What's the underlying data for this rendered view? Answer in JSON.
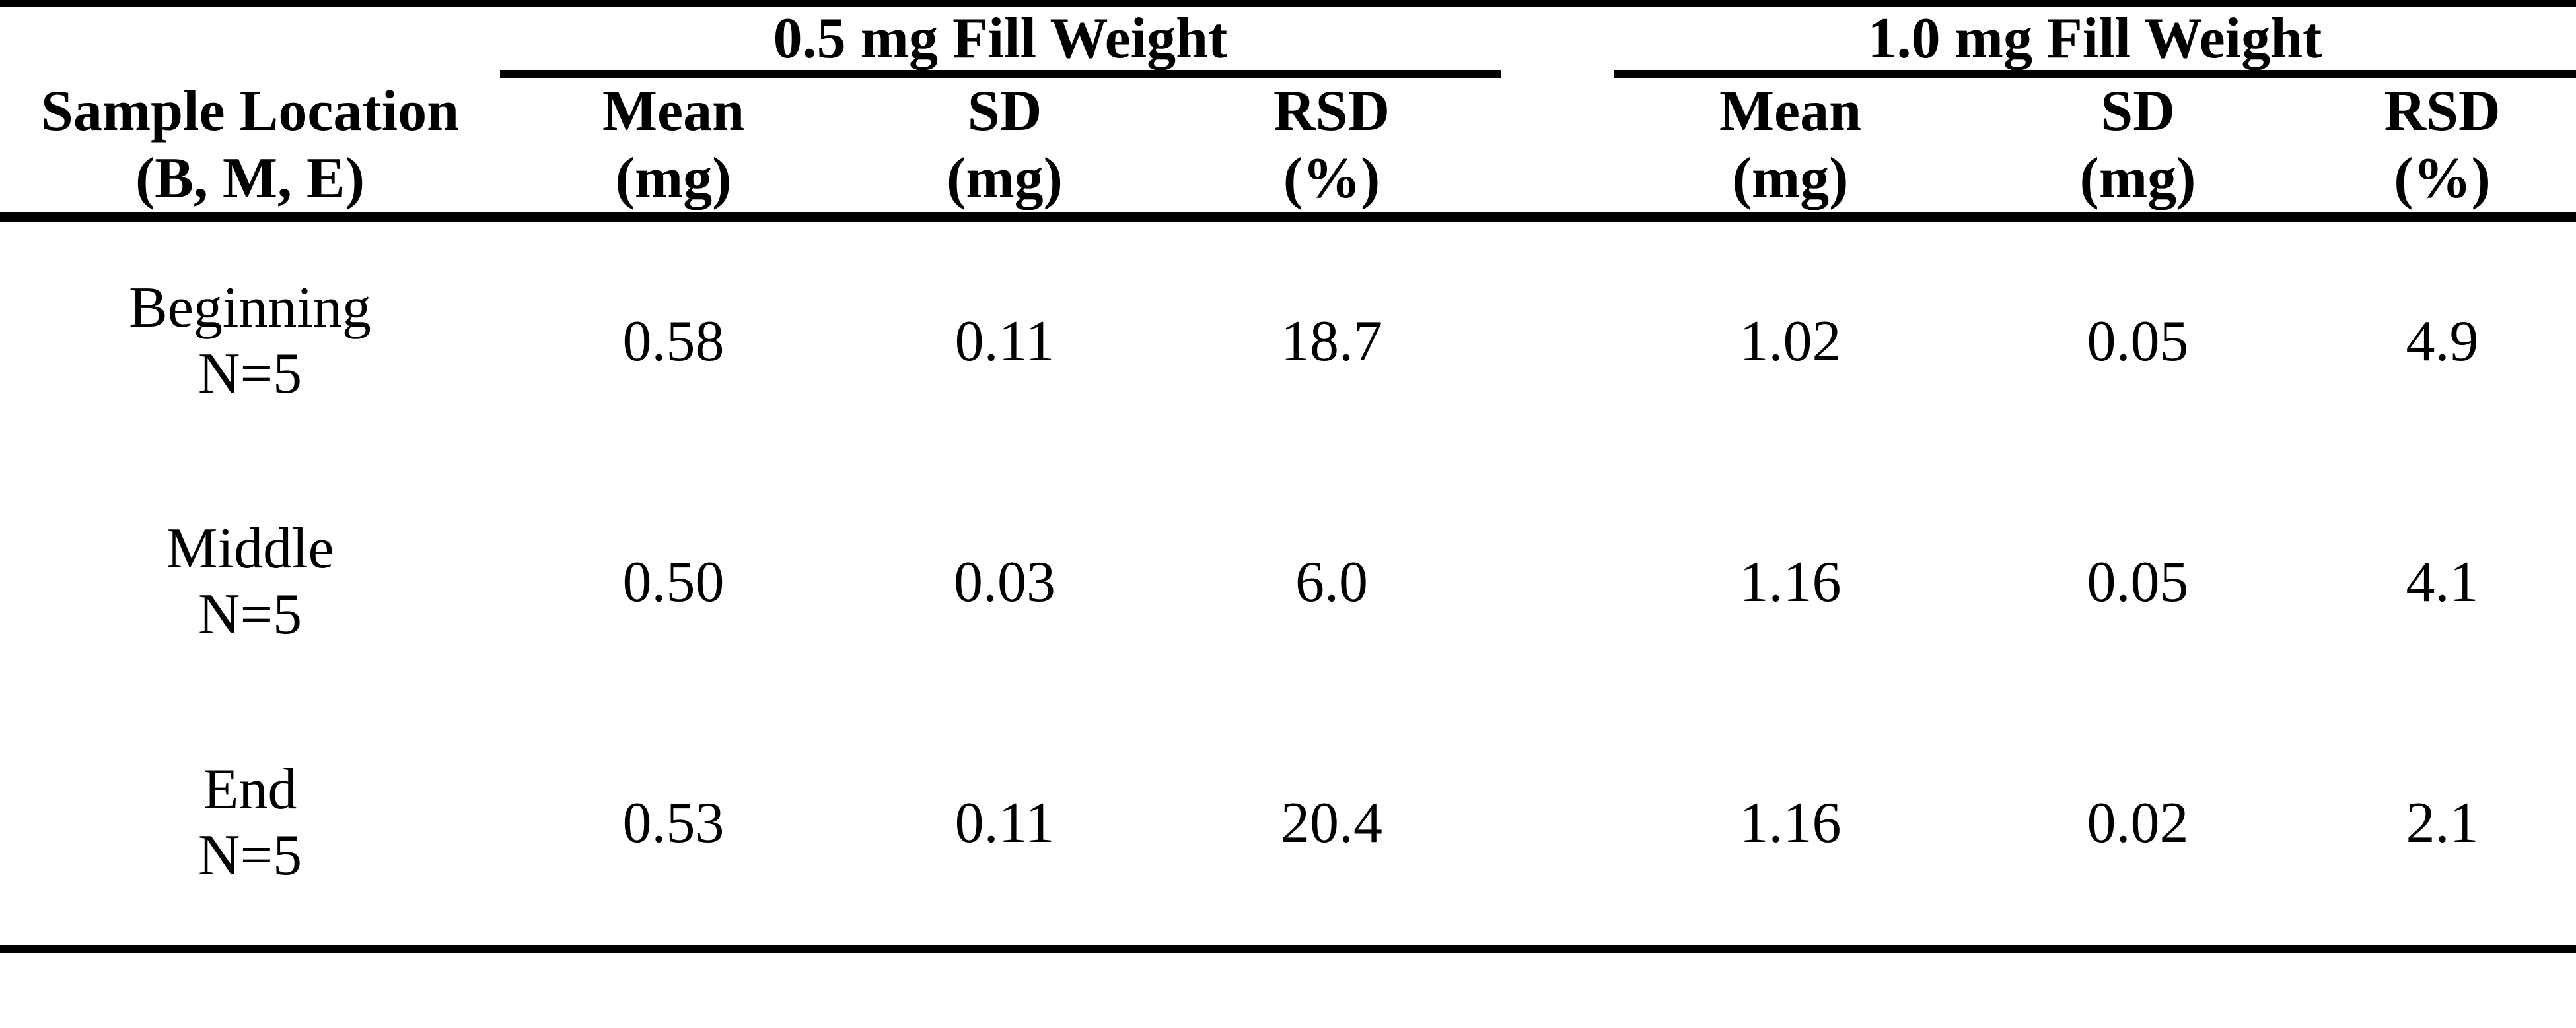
{
  "page": {
    "background_color": "#ffffff",
    "text_color": "#000000",
    "rule_color": "#000000"
  },
  "table": {
    "corner_header": {
      "line1": "Sample Location",
      "line2": "(B, M, E)"
    },
    "groups": [
      {
        "title": "0.5 mg Fill Weight"
      },
      {
        "title": "1.0 mg Fill Weight"
      }
    ],
    "columns": [
      {
        "line1": "Mean",
        "line2": "(mg)"
      },
      {
        "line1": "SD",
        "line2": "(mg)"
      },
      {
        "line1": "RSD",
        "line2": "(%)"
      },
      {
        "line1": "Mean",
        "line2": "(mg)"
      },
      {
        "line1": "SD",
        "line2": "(mg)"
      },
      {
        "line1": "RSD",
        "line2": "(%)"
      }
    ],
    "rows": [
      {
        "location": "Beginning",
        "n_label": "N=5",
        "values": [
          "0.58",
          "0.11",
          "18.7",
          "1.02",
          "0.05",
          "4.9"
        ]
      },
      {
        "location": "Middle",
        "n_label": "N=5",
        "values": [
          "0.50",
          "0.03",
          "6.0",
          "1.16",
          "0.05",
          "4.1"
        ]
      },
      {
        "location": "End",
        "n_label": "N=5",
        "values": [
          "0.53",
          "0.11",
          "20.4",
          "1.16",
          "0.02",
          "2.1"
        ]
      }
    ]
  }
}
